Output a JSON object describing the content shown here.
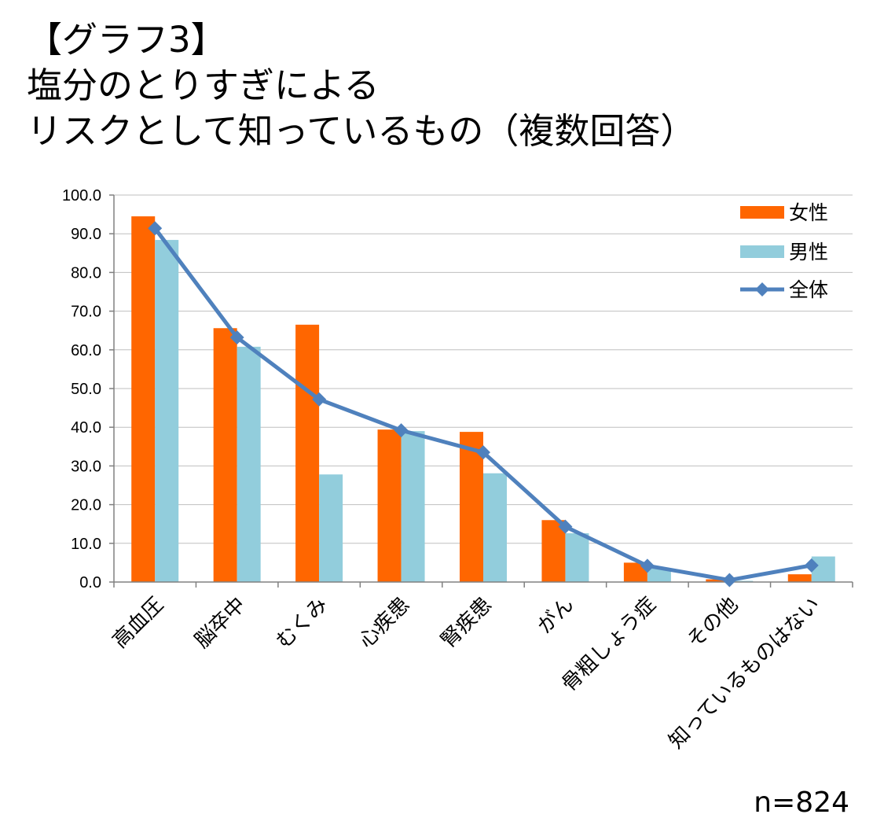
{
  "title_lines": [
    "【グラフ3】",
    "塩分のとりすぎによる",
    "リスクとして知っているもの（複数回答）"
  ],
  "note": "n=824",
  "chart_data": {
    "type": "bar",
    "categories": [
      "高血圧",
      "脳卒中",
      "むくみ",
      "心疾患",
      "腎疾患",
      "がん",
      "骨粗しょう症",
      "その他",
      "知っているものはない"
    ],
    "series": [
      {
        "name": "女性",
        "type": "bar",
        "color": "#ff6600",
        "values": [
          94.5,
          65.6,
          66.5,
          39.4,
          38.8,
          16.0,
          5.0,
          0.7,
          2.0
        ]
      },
      {
        "name": "男性",
        "type": "bar",
        "color": "#92cddc",
        "values": [
          88.4,
          60.8,
          27.8,
          39.0,
          28.1,
          12.6,
          3.5,
          0.3,
          6.6
        ]
      },
      {
        "name": "全体",
        "type": "line",
        "color": "#4f81bd",
        "marker": "diamond",
        "values": [
          91.4,
          63.2,
          47.2,
          39.2,
          33.5,
          14.3,
          4.2,
          0.5,
          4.3
        ]
      }
    ],
    "ylim": [
      0,
      100
    ],
    "yticks": [
      "0.0",
      "10.0",
      "20.0",
      "30.0",
      "40.0",
      "50.0",
      "60.0",
      "70.0",
      "80.0",
      "90.0",
      "100.0"
    ],
    "grid": true,
    "legend": "top-right"
  }
}
